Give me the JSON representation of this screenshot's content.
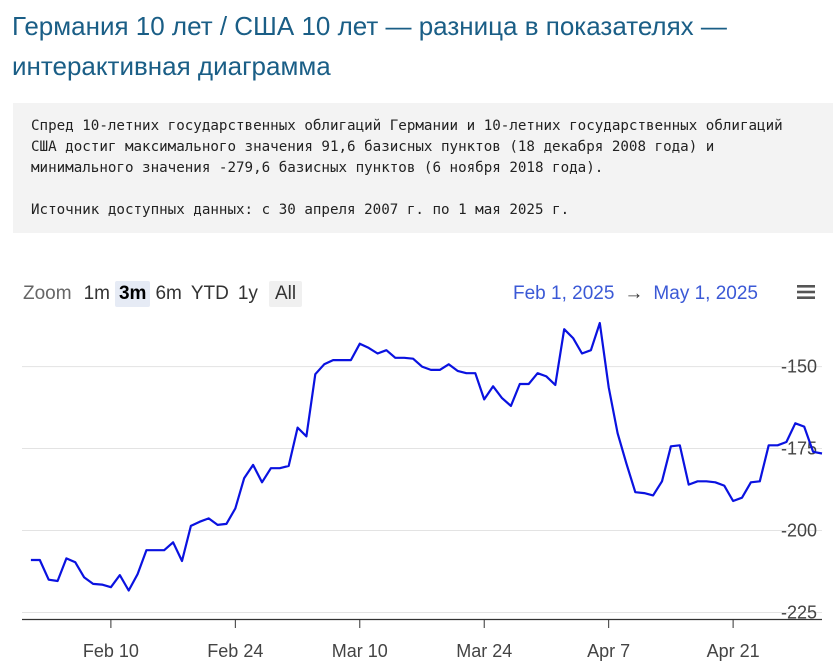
{
  "page": {
    "title": "Германия 10 лет / США 10 лет — разница в показателях — интерактивная диаграмма"
  },
  "info": {
    "description": "Спред 10-летних государственных облигаций Германии и 10-летних государственных облигаций США достиг максимального значения 91,6 базисных пунктов (18 декабря 2008 года) и минимального значения -279,6 базисных пунктов (6 ноября 2018 года).",
    "source": "Источник доступных данных: с 30 апреля 2007 г. по 1 мая 2025 г."
  },
  "toolbar": {
    "zoom_label": "Zoom",
    "zoom_buttons": [
      "1m",
      "3m",
      "6m",
      "YTD",
      "1y",
      "All"
    ],
    "active_zoom": "3m",
    "range_from": "Feb 1, 2025",
    "range_arrow": "→",
    "range_to": "May 1, 2025",
    "menu_icon": "hamburger-menu-icon"
  },
  "chart_data": {
    "type": "line",
    "title": "",
    "xlabel": "",
    "ylabel": "",
    "x_type": "date",
    "x_ticks": [
      "2025-02-10",
      "2025-02-24",
      "2025-03-10",
      "2025-03-24",
      "2025-04-07",
      "2025-04-21"
    ],
    "x_tick_labels": [
      "Feb 10",
      "Feb 24",
      "Mar 10",
      "Mar 24",
      "Apr 7",
      "Apr 21"
    ],
    "xlim": [
      "2025-01-31",
      "2025-05-01"
    ],
    "y_ticks": [
      -150,
      -175,
      -200,
      -225
    ],
    "y_tick_labels": [
      "-150",
      "-175",
      "-200",
      "-225"
    ],
    "ylim": [
      -227,
      -137
    ],
    "grid": true,
    "line_color": "#0a12e0",
    "series": [
      {
        "name": "",
        "points": [
          [
            "2025-02-01",
            -209.0
          ],
          [
            "2025-02-02",
            -209.0
          ],
          [
            "2025-02-03",
            -215.0
          ],
          [
            "2025-02-04",
            -215.4
          ],
          [
            "2025-02-05",
            -208.5
          ],
          [
            "2025-02-06",
            -209.7
          ],
          [
            "2025-02-07",
            -214.3
          ],
          [
            "2025-02-08",
            -216.3
          ],
          [
            "2025-02-09",
            -216.5
          ],
          [
            "2025-02-10",
            -217.3
          ],
          [
            "2025-02-11",
            -213.6
          ],
          [
            "2025-02-12",
            -218.3
          ],
          [
            "2025-02-13",
            -213.3
          ],
          [
            "2025-02-14",
            -206.0
          ],
          [
            "2025-02-15",
            -206.0
          ],
          [
            "2025-02-16",
            -206.0
          ],
          [
            "2025-02-17",
            -203.6
          ],
          [
            "2025-02-18",
            -209.3
          ],
          [
            "2025-02-19",
            -198.6
          ],
          [
            "2025-02-20",
            -197.3
          ],
          [
            "2025-02-21",
            -196.3
          ],
          [
            "2025-02-22",
            -198.3
          ],
          [
            "2025-02-23",
            -198.0
          ],
          [
            "2025-02-24",
            -193.3
          ],
          [
            "2025-02-25",
            -184.0
          ],
          [
            "2025-02-26",
            -180.0
          ],
          [
            "2025-02-27",
            -185.3
          ],
          [
            "2025-02-28",
            -181.0
          ],
          [
            "2025-03-01",
            -181.0
          ],
          [
            "2025-03-02",
            -180.3
          ],
          [
            "2025-03-03",
            -168.6
          ],
          [
            "2025-03-04",
            -171.3
          ],
          [
            "2025-03-05",
            -152.3
          ],
          [
            "2025-03-06",
            -149.3
          ],
          [
            "2025-03-07",
            -148.0
          ],
          [
            "2025-03-08",
            -148.0
          ],
          [
            "2025-03-09",
            -148.0
          ],
          [
            "2025-03-10",
            -143.0
          ],
          [
            "2025-03-11",
            -144.3
          ],
          [
            "2025-03-12",
            -146.0
          ],
          [
            "2025-03-13",
            -145.0
          ],
          [
            "2025-03-14",
            -147.3
          ],
          [
            "2025-03-15",
            -147.3
          ],
          [
            "2025-03-16",
            -147.6
          ],
          [
            "2025-03-17",
            -150.0
          ],
          [
            "2025-03-18",
            -151.0
          ],
          [
            "2025-03-19",
            -151.0
          ],
          [
            "2025-03-20",
            -149.3
          ],
          [
            "2025-03-21",
            -151.3
          ],
          [
            "2025-03-22",
            -152.0
          ],
          [
            "2025-03-23",
            -152.0
          ],
          [
            "2025-03-24",
            -160.0
          ],
          [
            "2025-03-25",
            -156.0
          ],
          [
            "2025-03-26",
            -159.6
          ],
          [
            "2025-03-27",
            -162.0
          ],
          [
            "2025-03-28",
            -155.3
          ],
          [
            "2025-03-29",
            -155.3
          ],
          [
            "2025-03-30",
            -152.0
          ],
          [
            "2025-03-31",
            -153.0
          ],
          [
            "2025-04-01",
            -155.6
          ],
          [
            "2025-04-02",
            -138.6
          ],
          [
            "2025-04-03",
            -141.3
          ],
          [
            "2025-04-04",
            -146.0
          ],
          [
            "2025-04-05",
            -145.0
          ],
          [
            "2025-04-06",
            -136.7
          ],
          [
            "2025-04-07",
            -156.3
          ],
          [
            "2025-04-08",
            -170.3
          ],
          [
            "2025-04-09",
            -179.6
          ],
          [
            "2025-04-10",
            -188.3
          ],
          [
            "2025-04-11",
            -188.6
          ],
          [
            "2025-04-12",
            -189.3
          ],
          [
            "2025-04-13",
            -185.0
          ],
          [
            "2025-04-14",
            -174.3
          ],
          [
            "2025-04-15",
            -174.0
          ],
          [
            "2025-04-16",
            -186.0
          ],
          [
            "2025-04-17",
            -185.0
          ],
          [
            "2025-04-18",
            -185.0
          ],
          [
            "2025-04-19",
            -185.3
          ],
          [
            "2025-04-20",
            -186.3
          ],
          [
            "2025-04-21",
            -191.0
          ],
          [
            "2025-04-22",
            -190.0
          ],
          [
            "2025-04-23",
            -185.3
          ],
          [
            "2025-04-24",
            -185.0
          ],
          [
            "2025-04-25",
            -174.0
          ],
          [
            "2025-04-26",
            -174.0
          ],
          [
            "2025-04-27",
            -173.0
          ],
          [
            "2025-04-28",
            -167.3
          ],
          [
            "2025-04-29",
            -168.3
          ],
          [
            "2025-04-30",
            -176.0
          ],
          [
            "2025-05-01",
            -176.5
          ]
        ]
      }
    ]
  }
}
